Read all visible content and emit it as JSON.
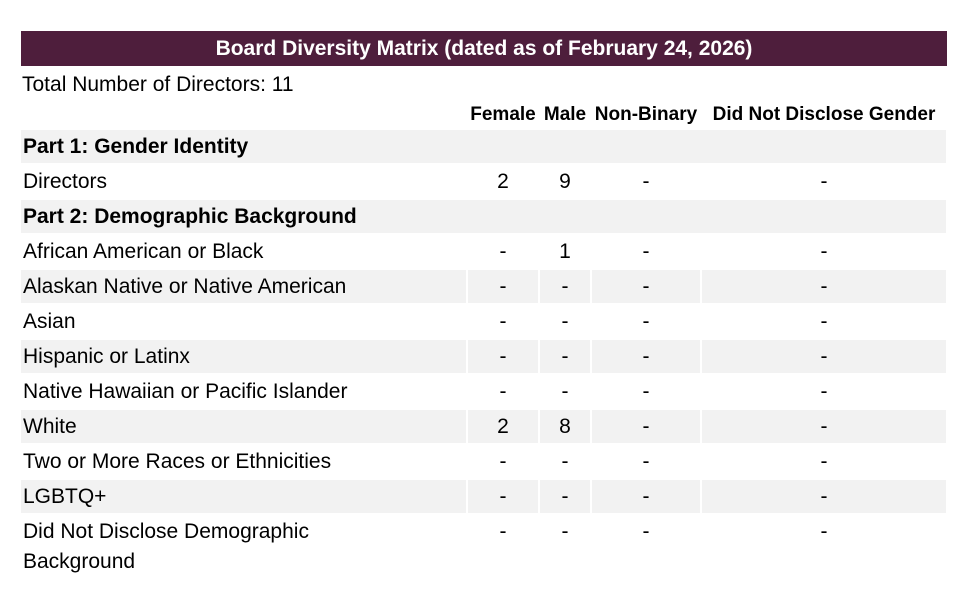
{
  "title_bar": {
    "text": "Board Diversity Matrix (dated as of February 24, 2026)",
    "background": "#4e1e3c",
    "text_color": "#ffffff"
  },
  "summary": {
    "total_directors_text": "Total Number of Directors: 11",
    "total_directors": 11
  },
  "table": {
    "stripe_color": "#f2f2f2",
    "columns": [
      "",
      "Female",
      "Male",
      "Non-Binary",
      "Did Not Disclose Gender"
    ],
    "rows": [
      {
        "type": "section",
        "label": "Part 1: Gender Identity"
      },
      {
        "type": "data",
        "label": "Directors",
        "values": [
          "2",
          "9",
          "-",
          "-"
        ]
      },
      {
        "type": "section",
        "label": "Part 2: Demographic Background"
      },
      {
        "type": "data",
        "label": "African American or Black",
        "values": [
          "-",
          "1",
          "-",
          "-"
        ]
      },
      {
        "type": "data",
        "label": "Alaskan Native or Native American",
        "values": [
          "-",
          "-",
          "-",
          "-"
        ]
      },
      {
        "type": "data",
        "label": "Asian",
        "values": [
          "-",
          "-",
          "-",
          "-"
        ]
      },
      {
        "type": "data",
        "label": "Hispanic or Latinx",
        "values": [
          "-",
          "-",
          "-",
          "-"
        ]
      },
      {
        "type": "data",
        "label": "Native Hawaiian or Pacific Islander",
        "values": [
          "-",
          "-",
          "-",
          "-"
        ]
      },
      {
        "type": "data",
        "label": "White",
        "values": [
          "2",
          "8",
          "-",
          "-"
        ]
      },
      {
        "type": "data",
        "label": "Two or More Races or Ethnicities",
        "values": [
          "-",
          "-",
          "-",
          "-"
        ]
      },
      {
        "type": "data",
        "label": "LGBTQ+",
        "values": [
          "-",
          "-",
          "-",
          "-"
        ]
      },
      {
        "type": "data",
        "label": "Did Not Disclose Demographic Background",
        "values": [
          "-",
          "-",
          "-",
          "-"
        ]
      }
    ]
  }
}
